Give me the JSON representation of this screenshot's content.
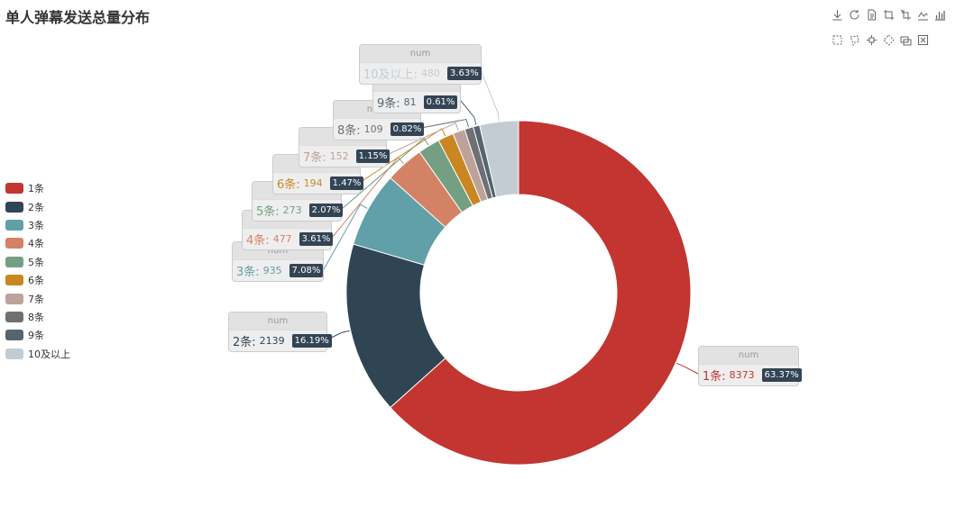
{
  "toolbox": {
    "rows": [
      [
        "download-icon",
        "refresh-icon",
        "document-icon",
        "crop-icon",
        "crop-alt-icon",
        "line-chart-icon",
        "bar-chart-icon"
      ],
      [
        "rect-select-icon",
        "lasso-select-icon",
        "keep-select-icon",
        "clear-select-icon",
        "brush-icon",
        "close-select-icon"
      ]
    ]
  },
  "chart_data": {
    "type": "pie",
    "title": "单人弹幕发送总量分布",
    "series_name": "num",
    "legend_position": "left",
    "inner_radius_ratio": 0.57,
    "slices": [
      {
        "label": "1条",
        "value": 8373,
        "percent": "63.37%",
        "color": "#c23531"
      },
      {
        "label": "2条",
        "value": 2139,
        "percent": "16.19%",
        "color": "#2f4554"
      },
      {
        "label": "3条",
        "value": 935,
        "percent": "7.08%",
        "color": "#61a0a8"
      },
      {
        "label": "4条",
        "value": 477,
        "percent": "3.61%",
        "color": "#d48265"
      },
      {
        "label": "5条",
        "value": 273,
        "percent": "2.07%",
        "color": "#749f83"
      },
      {
        "label": "6条",
        "value": 194,
        "percent": "1.47%",
        "color": "#ca8622"
      },
      {
        "label": "7条",
        "value": 152,
        "percent": "1.15%",
        "color": "#bda29a"
      },
      {
        "label": "8条",
        "value": 109,
        "percent": "0.82%",
        "color": "#6e7074"
      },
      {
        "label": "9条",
        "value": 81,
        "percent": "0.61%",
        "color": "#546570"
      },
      {
        "label": "10及以上",
        "value": 480,
        "percent": "3.63%",
        "color": "#c4ccd3"
      }
    ]
  }
}
